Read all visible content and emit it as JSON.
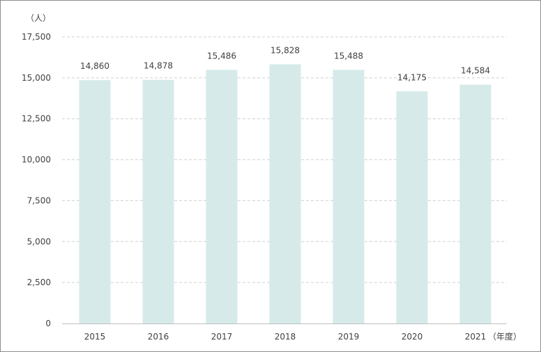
{
  "chart_data": {
    "type": "bar",
    "y_unit_label": "（人）",
    "x_unit_label": "（年度）",
    "categories": [
      "2015",
      "2016",
      "2017",
      "2018",
      "2019",
      "2020",
      "2021"
    ],
    "values": [
      14860,
      14878,
      15486,
      15828,
      15488,
      14175,
      14584
    ],
    "value_labels": [
      "14,860",
      "14,878",
      "15,486",
      "15,828",
      "15,488",
      "14,175",
      "14,584"
    ],
    "y_ticks": [
      0,
      2500,
      5000,
      7500,
      10000,
      12500,
      15000,
      17500
    ],
    "y_tick_labels": [
      "0",
      "2,500",
      "5,000",
      "7,500",
      "10,000",
      "12,500",
      "15,000",
      "17,500"
    ],
    "ylim": [
      0,
      17500
    ],
    "grid": true,
    "bar_color": "#d6eaea",
    "grid_color": "#d0d0d0",
    "axis_color": "#bfbfbf"
  }
}
